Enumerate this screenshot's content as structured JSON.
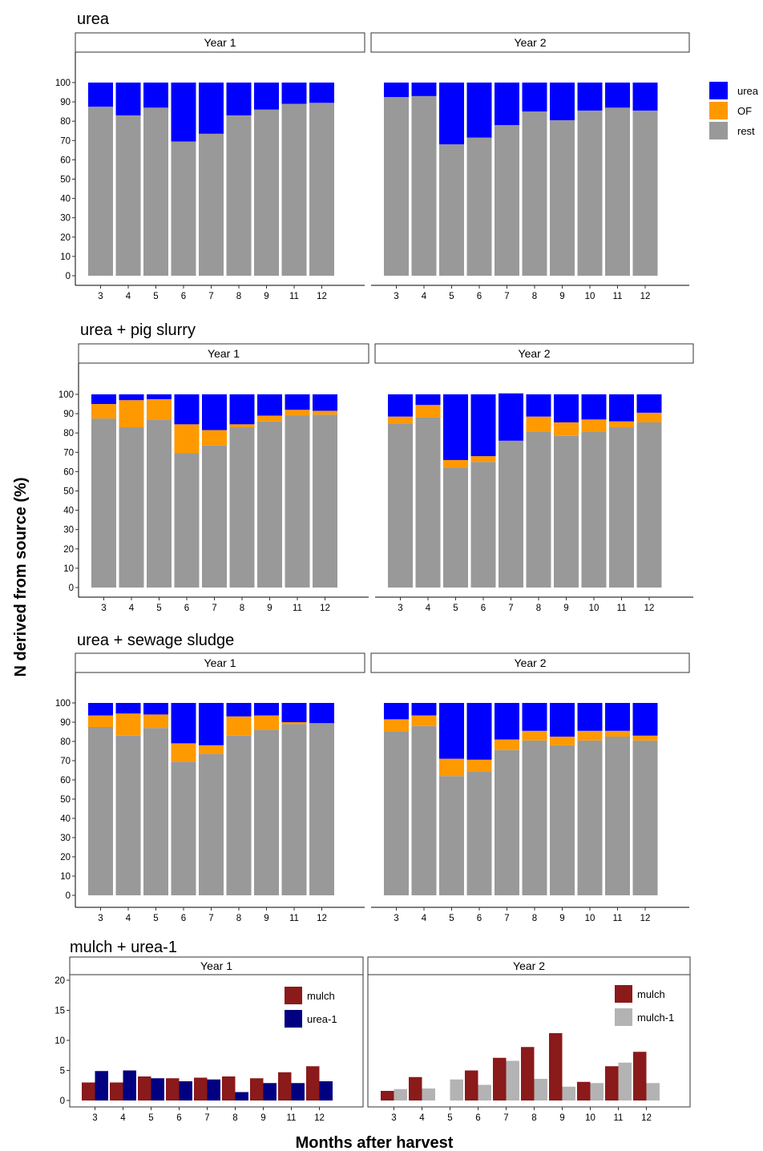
{
  "figure": {
    "ylabel": "N derived from source (%)",
    "xlabel": "Months after harvest"
  },
  "colors": {
    "urea": "#0000FF",
    "OF": "#FF9900",
    "rest": "#999999",
    "mulch": "#8B1A1A",
    "urea_1": "#000080",
    "mulch_1": "#B3B3B3"
  },
  "chart_data": [
    {
      "type": "bar",
      "stacked": true,
      "title": "urea",
      "ylim": [
        0,
        100
      ],
      "yticks": [
        0,
        10,
        20,
        30,
        40,
        50,
        60,
        70,
        80,
        90,
        100
      ],
      "legend": {
        "position": "right",
        "entries": [
          "urea",
          "OF",
          "rest"
        ]
      },
      "facets": [
        {
          "label": "Year 1",
          "categories": [
            "3",
            "4",
            "5",
            "6",
            "7",
            "8",
            "9",
            "11",
            "12"
          ],
          "series": [
            {
              "name": "rest",
              "values": [
                87.5,
                83,
                87,
                69.5,
                73.5,
                83,
                86,
                89,
                89.5
              ]
            },
            {
              "name": "OF",
              "values": [
                0,
                0,
                0,
                0,
                0,
                0,
                0,
                0,
                0
              ]
            },
            {
              "name": "urea",
              "values": [
                12.5,
                17,
                13,
                30.5,
                26.5,
                17,
                14,
                11,
                10.5
              ]
            }
          ]
        },
        {
          "label": "Year 2",
          "categories": [
            "3",
            "4",
            "5",
            "6",
            "7",
            "8",
            "9",
            "10",
            "11",
            "12"
          ],
          "series": [
            {
              "name": "rest",
              "values": [
                92.5,
                93,
                68,
                71.5,
                78,
                85,
                80.5,
                85.5,
                87,
                85.5
              ]
            },
            {
              "name": "OF",
              "values": [
                0,
                0,
                0,
                0,
                0,
                0,
                0,
                0,
                0,
                0
              ]
            },
            {
              "name": "urea",
              "values": [
                7.5,
                7,
                32,
                28.5,
                22,
                15,
                19.5,
                14.5,
                13,
                14.5
              ]
            }
          ]
        }
      ]
    },
    {
      "type": "bar",
      "stacked": true,
      "title": "urea + pig slurry",
      "ylim": [
        0,
        100
      ],
      "yticks": [
        0,
        10,
        20,
        30,
        40,
        50,
        60,
        70,
        80,
        90,
        100
      ],
      "facets": [
        {
          "label": "Year 1",
          "categories": [
            "3",
            "4",
            "5",
            "6",
            "7",
            "8",
            "9",
            "11",
            "12"
          ],
          "series": [
            {
              "name": "rest",
              "values": [
                87.5,
                83,
                87,
                69.5,
                73.5,
                83,
                86,
                89,
                89.5
              ]
            },
            {
              "name": "OF",
              "values": [
                7.5,
                14,
                10.5,
                15,
                8,
                1.5,
                3,
                3,
                2
              ]
            },
            {
              "name": "urea",
              "values": [
                5,
                3,
                2.5,
                15.5,
                18.5,
                15.5,
                11,
                8,
                8.5
              ]
            }
          ]
        },
        {
          "label": "Year 2",
          "categories": [
            "3",
            "4",
            "5",
            "6",
            "7",
            "8",
            "9",
            "10",
            "11",
            "12"
          ],
          "series": [
            {
              "name": "rest",
              "values": [
                85,
                88,
                62,
                65,
                76,
                80.5,
                78.5,
                80.5,
                83,
                85.5
              ]
            },
            {
              "name": "OF",
              "values": [
                3.5,
                6.5,
                4,
                3,
                0,
                8,
                7,
                6.5,
                3,
                5
              ]
            },
            {
              "name": "urea",
              "values": [
                11.5,
                5.5,
                34,
                32,
                24.5,
                11.5,
                14.5,
                13,
                14,
                9.5
              ]
            }
          ]
        }
      ]
    },
    {
      "type": "bar",
      "stacked": true,
      "title": "urea + sewage sludge",
      "ylim": [
        0,
        100
      ],
      "yticks": [
        0,
        10,
        20,
        30,
        40,
        50,
        60,
        70,
        80,
        90,
        100
      ],
      "facets": [
        {
          "label": "Year 1",
          "categories": [
            "3",
            "4",
            "5",
            "6",
            "7",
            "8",
            "9",
            "11",
            "12"
          ],
          "series": [
            {
              "name": "rest",
              "values": [
                87.5,
                83,
                87,
                69.5,
                73.5,
                83,
                86,
                89,
                89.5
              ]
            },
            {
              "name": "OF",
              "values": [
                6,
                11.5,
                7,
                9.5,
                4.5,
                10,
                7.5,
                1,
                0
              ]
            },
            {
              "name": "urea",
              "values": [
                6.5,
                5.5,
                6,
                21,
                22,
                7,
                6.5,
                10,
                10.5
              ]
            }
          ]
        },
        {
          "label": "Year 2",
          "categories": [
            "3",
            "4",
            "5",
            "6",
            "7",
            "8",
            "9",
            "10",
            "11",
            "12"
          ],
          "series": [
            {
              "name": "rest",
              "values": [
                85,
                88,
                62,
                64.5,
                75.5,
                80.5,
                78,
                80.5,
                82.5,
                80.5
              ]
            },
            {
              "name": "OF",
              "values": [
                6.5,
                5.5,
                9,
                6,
                5.5,
                5,
                4.5,
                5,
                3,
                2.5
              ]
            },
            {
              "name": "urea",
              "values": [
                8.5,
                6.5,
                29,
                29.5,
                19,
                14.5,
                17.5,
                14.5,
                14.5,
                17
              ]
            }
          ]
        }
      ]
    },
    {
      "type": "bar",
      "grouped": true,
      "title": "mulch + urea-1",
      "ylim": [
        0,
        20
      ],
      "yticks": [
        0,
        5,
        10,
        15,
        20
      ],
      "facets": [
        {
          "label": "Year 1",
          "legend": {
            "position": "top-right",
            "entries": [
              "mulch",
              "urea-1"
            ]
          },
          "categories": [
            "3",
            "4",
            "5",
            "6",
            "7",
            "8",
            "9",
            "11",
            "12"
          ],
          "series": [
            {
              "name": "mulch",
              "values": [
                3,
                3,
                4,
                3.7,
                3.8,
                4,
                3.7,
                4.7,
                5.7
              ]
            },
            {
              "name": "urea-1",
              "values": [
                4.9,
                5,
                3.7,
                3.2,
                3.5,
                1.4,
                2.9,
                2.9,
                3.2
              ]
            }
          ]
        },
        {
          "label": "Year 2",
          "legend": {
            "position": "top-right",
            "entries": [
              "mulch",
              "mulch-1"
            ]
          },
          "categories": [
            "3",
            "4",
            "5",
            "6",
            "7",
            "8",
            "9",
            "10",
            "11",
            "12"
          ],
          "series": [
            {
              "name": "mulch",
              "values": [
                1.6,
                3.9,
                0,
                5,
                7.1,
                8.9,
                11.2,
                3.1,
                5.7,
                8.1
              ]
            },
            {
              "name": "mulch-1",
              "values": [
                1.9,
                2,
                3.5,
                2.6,
                6.6,
                3.6,
                2.3,
                2.9,
                6.3,
                2.9
              ]
            }
          ]
        }
      ]
    }
  ]
}
